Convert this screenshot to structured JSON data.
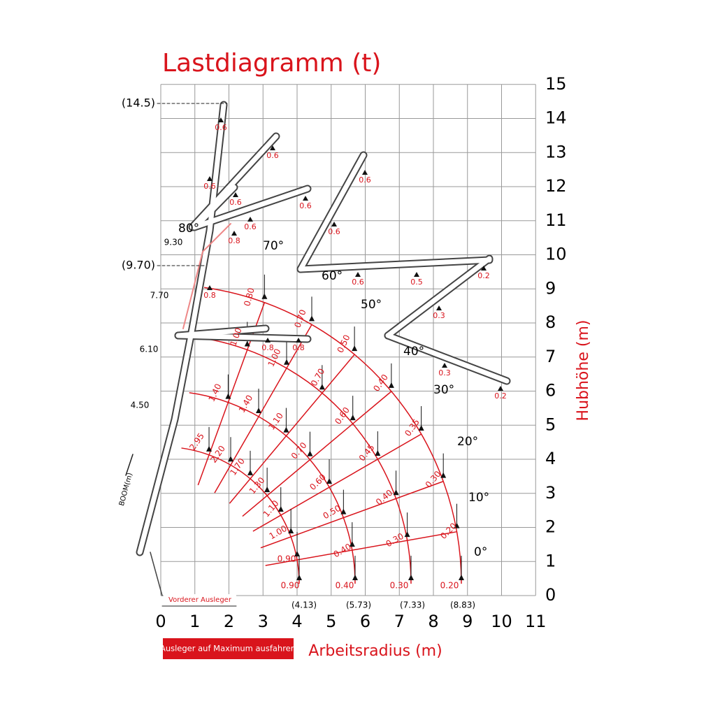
{
  "title": "Lastdiagramm (t)",
  "x_axis": {
    "label": "Arbeitsradius (m)",
    "ticks": [
      "0",
      "1",
      "2",
      "3",
      "4",
      "5",
      "6",
      "7",
      "8",
      "9",
      "10",
      "11"
    ]
  },
  "y_axis": {
    "label": "Hubhöhe (m)",
    "ticks": [
      "0",
      "1",
      "2",
      "3",
      "4",
      "5",
      "6",
      "7",
      "8",
      "9",
      "10",
      "11",
      "12",
      "13",
      "14",
      "15"
    ]
  },
  "angles": [
    "0°",
    "10°",
    "20°",
    "30°",
    "40°",
    "50°",
    "60°",
    "70°",
    "80°"
  ],
  "radius_marks": [
    "(4.13)",
    "(5.73)",
    "(7.33)",
    "(8.83)"
  ],
  "height_marks": [
    "(14.5)",
    "(9.70)"
  ],
  "boom_lengths": [
    "9.30",
    "7.70",
    "6.10",
    "4.50"
  ],
  "boom_label": "BOOM(m)",
  "front_outrigger": "Vorderer Ausleger",
  "button": "Ausleger auf Maximum ausfahren",
  "fan_loads": [
    "0.90",
    "0.40",
    "0.30",
    "0.20",
    "0.90",
    "0.40",
    "0.30",
    "0.20",
    "1.00",
    "0.50",
    "0.40",
    "0.30",
    "1.10",
    "0.60",
    "0.45",
    "0.35",
    "1.30",
    "0.70",
    "0.60",
    "0.40",
    "1.70",
    "1.10",
    "0.70",
    "0.50",
    "2.20",
    "1.40",
    "1.00",
    "0.70",
    "2.95",
    "1.40",
    "1.00",
    "0.80"
  ],
  "boom_loads": [
    "0.6",
    "0.6",
    "0.6",
    "0.6",
    "0.6",
    "0.6",
    "0.8",
    "0.6",
    "0.6",
    "0.6",
    "0.5",
    "0.2",
    "0.3",
    "0.8",
    "0.8",
    "0.8",
    "0.3",
    "0.2"
  ]
}
